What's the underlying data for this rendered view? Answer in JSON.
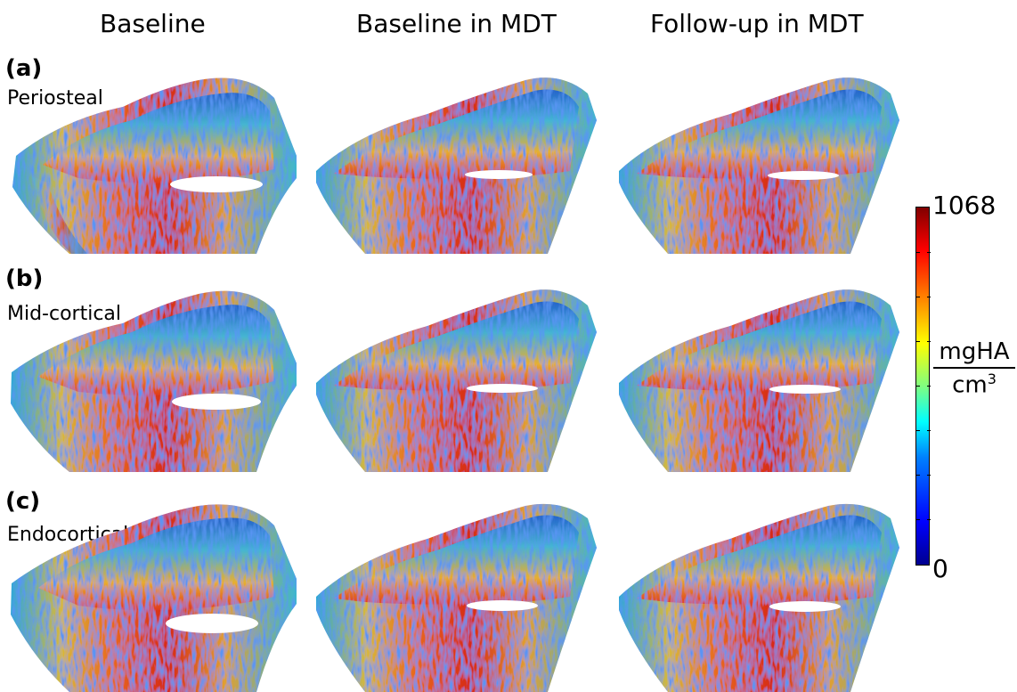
{
  "columns": [
    "Baseline",
    "Baseline in MDT",
    "Follow-up in MDT"
  ],
  "rows": [
    {
      "letter": "(a)",
      "name": "Periosteal"
    },
    {
      "letter": "(b)",
      "name": "Mid-cortical"
    },
    {
      "letter": "(c)",
      "name": "Endocortical"
    }
  ],
  "colorbar": {
    "max_label": "1068",
    "min_label": "0",
    "unit_numerator": "mgHA",
    "unit_denominator": "cm",
    "unit_exponent": "3",
    "colormap": "jet"
  }
}
